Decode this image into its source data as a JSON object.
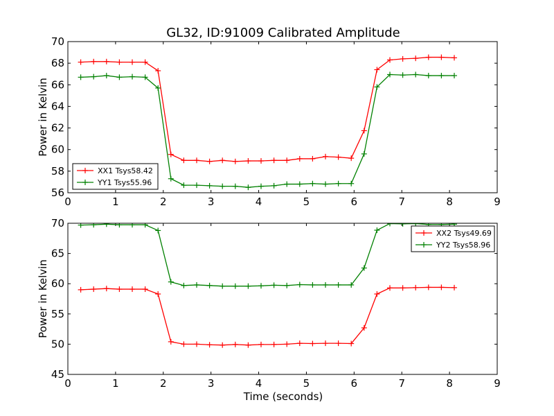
{
  "chart_data": [
    {
      "type": "line",
      "title": "GL32, ID:91009 Calibrated Amplitude",
      "xlabel": "",
      "ylabel": "Power in Kelvin",
      "xlim": [
        0,
        9
      ],
      "ylim": [
        56,
        70
      ],
      "xticks": [
        "0",
        "1",
        "2",
        "3",
        "4",
        "5",
        "6",
        "7",
        "8",
        "9"
      ],
      "yticks": [
        "56",
        "58",
        "60",
        "62",
        "64",
        "66",
        "68",
        "70"
      ],
      "legend_position": "lower-left",
      "x": [
        0.27,
        0.54,
        0.81,
        1.08,
        1.35,
        1.62,
        1.89,
        2.16,
        2.43,
        2.7,
        2.97,
        3.24,
        3.51,
        3.78,
        4.05,
        4.32,
        4.59,
        4.86,
        5.13,
        5.4,
        5.67,
        5.94,
        6.21,
        6.48,
        6.75,
        7.02,
        7.29,
        7.56,
        7.83,
        8.1
      ],
      "series": [
        {
          "name": "XX1 Tsys58.42",
          "color": "#ff0000",
          "values": [
            68.1,
            68.15,
            68.15,
            68.1,
            68.1,
            68.1,
            67.3,
            59.55,
            59.0,
            59.0,
            58.9,
            59.0,
            58.9,
            58.95,
            58.95,
            59.0,
            59.0,
            59.15,
            59.15,
            59.35,
            59.3,
            59.2,
            61.75,
            67.4,
            68.3,
            68.4,
            68.45,
            68.55,
            68.55,
            68.5
          ]
        },
        {
          "name": "YY1 Tsys55.96",
          "color": "#008000",
          "values": [
            66.7,
            66.75,
            66.85,
            66.7,
            66.75,
            66.7,
            65.7,
            57.3,
            56.7,
            56.7,
            56.65,
            56.6,
            56.6,
            56.5,
            56.6,
            56.65,
            56.8,
            56.8,
            56.85,
            56.8,
            56.85,
            56.85,
            59.6,
            65.8,
            66.95,
            66.9,
            66.95,
            66.85,
            66.85,
            66.85
          ]
        }
      ]
    },
    {
      "type": "line",
      "title": "",
      "xlabel": "Time (seconds)",
      "ylabel": "Power in Kelvin",
      "xlim": [
        0,
        9
      ],
      "ylim": [
        45,
        70
      ],
      "xticks": [
        "0",
        "1",
        "2",
        "3",
        "4",
        "5",
        "6",
        "7",
        "8",
        "9"
      ],
      "yticks": [
        "45",
        "50",
        "55",
        "60",
        "65",
        "70"
      ],
      "legend_position": "top-right",
      "x": [
        0.27,
        0.54,
        0.81,
        1.08,
        1.35,
        1.62,
        1.89,
        2.16,
        2.43,
        2.7,
        2.97,
        3.24,
        3.51,
        3.78,
        4.05,
        4.32,
        4.59,
        4.86,
        5.13,
        5.4,
        5.67,
        5.94,
        6.21,
        6.48,
        6.75,
        7.02,
        7.29,
        7.56,
        7.83,
        8.1
      ],
      "series": [
        {
          "name": "XX2 Tsys49.69",
          "color": "#ff0000",
          "values": [
            59.0,
            59.1,
            59.2,
            59.1,
            59.1,
            59.1,
            58.3,
            50.4,
            50.0,
            50.0,
            49.9,
            49.85,
            49.95,
            49.85,
            49.95,
            49.95,
            50.0,
            50.15,
            50.1,
            50.15,
            50.15,
            50.1,
            52.7,
            58.3,
            59.3,
            59.3,
            59.35,
            59.4,
            59.4,
            59.35
          ]
        },
        {
          "name": "YY2 Tsys58.96",
          "color": "#008000",
          "values": [
            69.7,
            69.75,
            69.85,
            69.75,
            69.75,
            69.75,
            68.8,
            60.3,
            59.7,
            59.8,
            59.7,
            59.6,
            59.6,
            59.6,
            59.65,
            59.75,
            59.7,
            59.85,
            59.8,
            59.8,
            59.8,
            59.8,
            62.6,
            68.85,
            69.95,
            69.9,
            69.95,
            69.8,
            69.8,
            69.85
          ]
        }
      ]
    }
  ]
}
